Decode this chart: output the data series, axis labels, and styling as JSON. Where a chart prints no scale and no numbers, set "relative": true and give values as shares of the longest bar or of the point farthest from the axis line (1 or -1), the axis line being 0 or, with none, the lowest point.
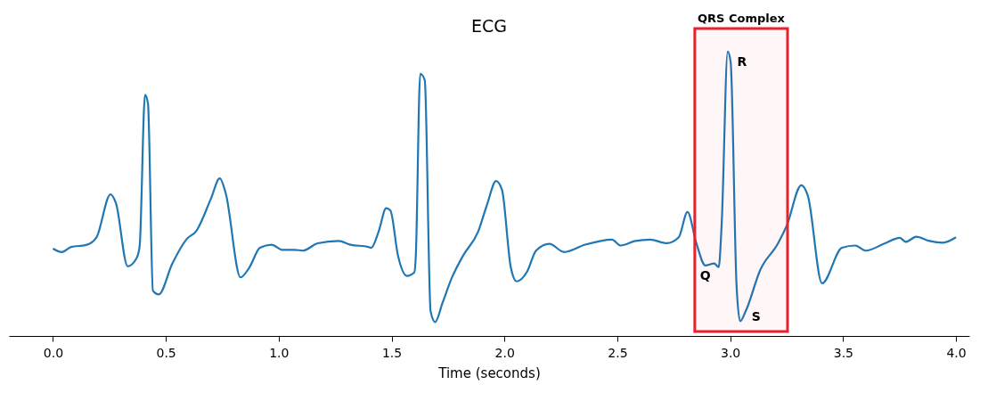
{
  "chart_data": {
    "type": "line",
    "title": "ECG",
    "xlabel": "Time (seconds)",
    "relative": true,
    "grid": false,
    "xlim": [
      -0.195,
      4.059
    ],
    "xticks": [
      {
        "value": 0,
        "label": "0.0"
      },
      0.5,
      {
        "value": 1,
        "label": "1.0"
      },
      1.5,
      {
        "value": 2,
        "label": "2.0"
      },
      2.5,
      {
        "value": 3,
        "label": "3.0"
      },
      3.5,
      {
        "value": 4,
        "label": "4.0"
      }
    ],
    "series": [
      {
        "color": "#1f77b4",
        "x": [
          0.0,
          0.039,
          0.081,
          0.147,
          0.193,
          0.255,
          0.279,
          0.331,
          0.371,
          0.384,
          0.408,
          0.421,
          0.443,
          0.469,
          0.528,
          0.594,
          0.634,
          0.7,
          0.739,
          0.765,
          0.831,
          0.871,
          0.917,
          0.969,
          1.015,
          1.068,
          1.107,
          1.173,
          1.265,
          1.318,
          1.397,
          1.41,
          1.443,
          1.476,
          1.495,
          1.528,
          1.568,
          1.601,
          1.607,
          1.627,
          1.647,
          1.673,
          1.693,
          1.726,
          1.765,
          1.818,
          1.884,
          1.923,
          1.963,
          1.989,
          2.028,
          2.054,
          2.101,
          2.14,
          2.199,
          2.265,
          2.357,
          2.476,
          2.515,
          2.58,
          2.646,
          2.719,
          2.772,
          2.811,
          2.85,
          2.89,
          2.929,
          2.949,
          2.962,
          2.989,
          3.002,
          3.028,
          3.044,
          3.068,
          3.133,
          3.212,
          3.251,
          3.315,
          3.344,
          3.407,
          3.495,
          3.554,
          3.6,
          3.686,
          3.751,
          3.778,
          3.824,
          3.883,
          3.942,
          4.0
        ],
        "values": [
          0.307,
          0.295,
          0.313,
          0.32,
          0.347,
          0.498,
          0.467,
          0.245,
          0.274,
          0.315,
          0.848,
          0.817,
          0.159,
          0.146,
          0.253,
          0.342,
          0.368,
          0.483,
          0.554,
          0.503,
          0.206,
          0.242,
          0.31,
          0.321,
          0.303,
          0.303,
          0.3,
          0.326,
          0.334,
          0.321,
          0.313,
          0.31,
          0.368,
          0.449,
          0.441,
          0.284,
          0.211,
          0.224,
          0.274,
          0.922,
          0.9,
          0.086,
          0.049,
          0.117,
          0.201,
          0.284,
          0.368,
          0.462,
          0.545,
          0.514,
          0.242,
          0.192,
          0.227,
          0.3,
          0.324,
          0.295,
          0.321,
          0.339,
          0.318,
          0.334,
          0.339,
          0.326,
          0.347,
          0.436,
          0.326,
          0.248,
          0.255,
          0.242,
          0.389,
          1.0,
          0.963,
          0.18,
          0.052,
          0.086,
          0.232,
          0.326,
          0.389,
          0.53,
          0.493,
          0.185,
          0.31,
          0.318,
          0.3,
          0.326,
          0.345,
          0.331,
          0.349,
          0.334,
          0.328,
          0.347
        ]
      }
    ],
    "bands": [
      {
        "axis": "x",
        "from": 2.843,
        "to": 3.254,
        "label": "QRS Complex",
        "color": "#e8212b"
      }
    ],
    "annotations": [
      {
        "text": "Q",
        "x": 2.929,
        "y": 0.255
      },
      {
        "text": "R",
        "x": 2.989,
        "y": 1.0
      },
      {
        "text": "S",
        "x": 3.044,
        "y": 0.052
      }
    ]
  }
}
